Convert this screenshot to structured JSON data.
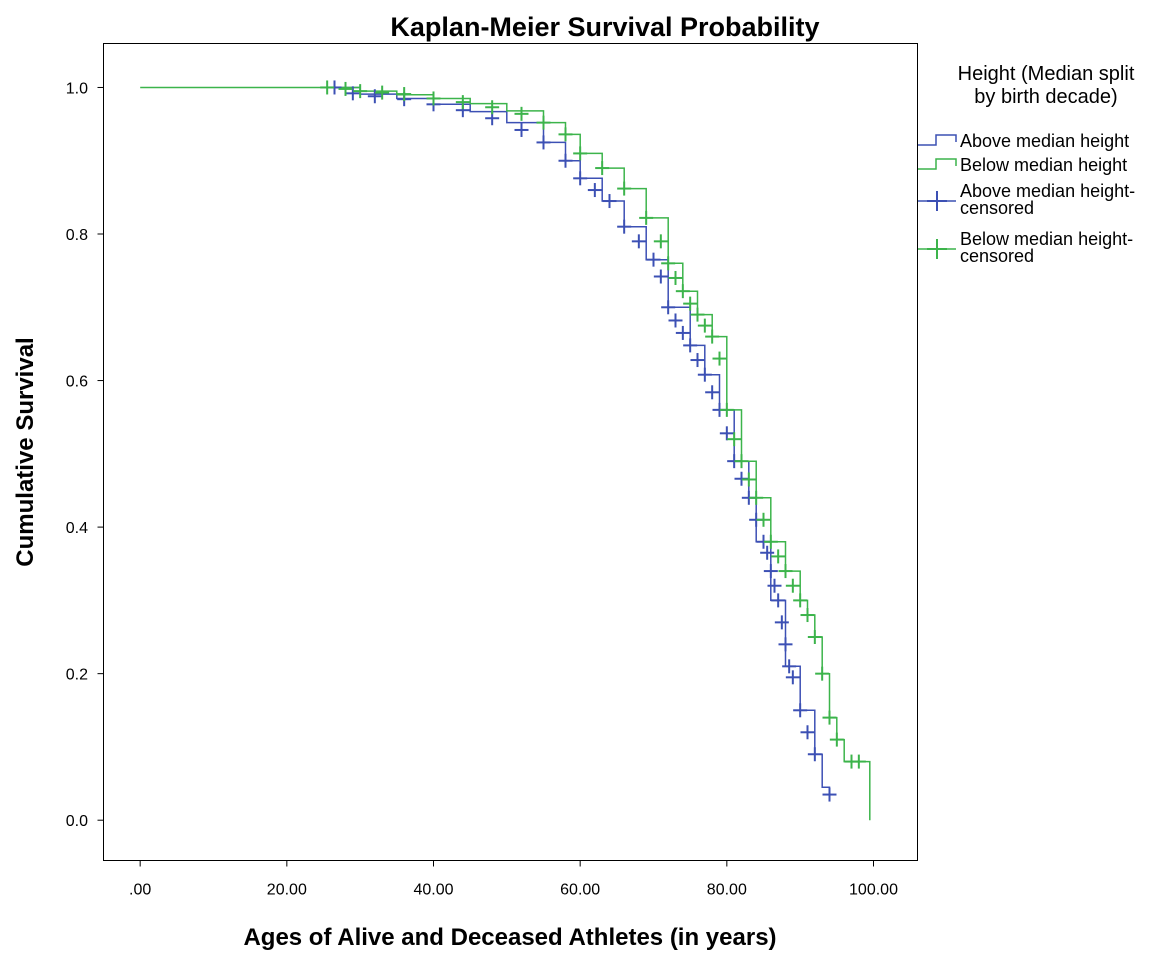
{
  "chart_data": {
    "type": "line",
    "title": "Kaplan-Meier Survival Probability",
    "xlabel": "Ages of Alive and Deceased Athletes (in years)",
    "ylabel": "Cumulative Survival",
    "xlim": [
      -5,
      106
    ],
    "ylim": [
      -0.055,
      1.06
    ],
    "xticks": [
      0,
      20,
      40,
      60,
      80,
      100
    ],
    "xtick_labels": [
      ".00",
      "20.00",
      "40.00",
      "60.00",
      "80.00",
      "100.00"
    ],
    "yticks": [
      0.0,
      0.2,
      0.4,
      0.6,
      0.8,
      1.0
    ],
    "ytick_labels": [
      "0.0",
      "0.2",
      "0.4",
      "0.6",
      "0.8",
      "1.0"
    ],
    "grid": false,
    "legend": {
      "title_lines": [
        "Height (Median split",
        "by birth decade)"
      ],
      "placement": "right",
      "entries": [
        {
          "label_lines": [
            "Above median height"
          ],
          "kind": "step",
          "series": 0
        },
        {
          "label_lines": [
            "Below median height"
          ],
          "kind": "step",
          "series": 1
        },
        {
          "label_lines": [
            "Above median height-",
            "censored"
          ],
          "kind": "censor",
          "series": 0
        },
        {
          "label_lines": [
            "Below median height-",
            "censored"
          ],
          "kind": "censor",
          "series": 1
        }
      ]
    },
    "series": [
      {
        "name": "Above median height",
        "color": "#3c50b4",
        "x": [
          26,
          30,
          35,
          40,
          45,
          50,
          55,
          58,
          60,
          63,
          66,
          69,
          72,
          75,
          77,
          79,
          81,
          83,
          84,
          86,
          88,
          90,
          92,
          93,
          94
        ],
        "y": [
          1.0,
          0.991,
          0.985,
          0.977,
          0.967,
          0.952,
          0.925,
          0.9,
          0.876,
          0.845,
          0.81,
          0.765,
          0.7,
          0.648,
          0.608,
          0.56,
          0.49,
          0.44,
          0.38,
          0.3,
          0.21,
          0.15,
          0.09,
          0.045,
          0.035
        ],
        "censored_x": [
          26.5,
          29,
          32,
          36,
          40,
          44,
          48,
          52,
          55,
          58,
          60,
          62,
          64,
          66,
          68,
          70,
          71,
          72,
          73,
          74,
          75,
          76,
          77,
          78,
          79,
          80,
          81,
          82,
          83,
          84,
          85,
          85.5,
          86,
          86.5,
          87,
          87.5,
          88,
          88.5,
          89,
          90,
          91,
          92,
          94
        ],
        "censored_y": [
          1.0,
          0.992,
          0.988,
          0.984,
          0.977,
          0.969,
          0.958,
          0.942,
          0.925,
          0.9,
          0.876,
          0.86,
          0.845,
          0.81,
          0.79,
          0.765,
          0.742,
          0.7,
          0.682,
          0.665,
          0.648,
          0.628,
          0.608,
          0.584,
          0.56,
          0.528,
          0.49,
          0.466,
          0.44,
          0.41,
          0.38,
          0.365,
          0.34,
          0.32,
          0.3,
          0.27,
          0.24,
          0.21,
          0.195,
          0.15,
          0.12,
          0.09,
          0.035
        ]
      },
      {
        "name": "Below median height",
        "color": "#3cb44b",
        "x": [
          0,
          26,
          30,
          35,
          40,
          45,
          50,
          55,
          58,
          60,
          63,
          66,
          69,
          72,
          74,
          76,
          78,
          80,
          82,
          84,
          86,
          88,
          90,
          91,
          92,
          93,
          94,
          95,
          96,
          99,
          99.5
        ],
        "y": [
          1.0,
          1.0,
          0.995,
          0.99,
          0.985,
          0.978,
          0.968,
          0.952,
          0.936,
          0.91,
          0.89,
          0.862,
          0.822,
          0.76,
          0.722,
          0.69,
          0.66,
          0.56,
          0.49,
          0.44,
          0.38,
          0.34,
          0.3,
          0.28,
          0.25,
          0.2,
          0.14,
          0.11,
          0.08,
          0.08,
          0.0
        ],
        "censored_x": [
          25.5,
          28,
          30,
          33,
          36,
          40,
          44,
          48,
          52,
          55,
          58,
          60,
          63,
          66,
          69,
          71,
          72,
          73,
          74,
          75,
          76,
          77,
          78,
          79,
          80,
          81,
          82,
          83,
          84,
          85,
          86,
          87,
          88,
          89,
          90,
          91,
          92,
          93,
          94,
          95,
          97,
          98
        ],
        "censored_y": [
          1.0,
          0.998,
          0.995,
          0.993,
          0.991,
          0.985,
          0.98,
          0.973,
          0.964,
          0.952,
          0.936,
          0.91,
          0.89,
          0.862,
          0.822,
          0.79,
          0.76,
          0.74,
          0.722,
          0.705,
          0.69,
          0.675,
          0.66,
          0.63,
          0.56,
          0.52,
          0.49,
          0.465,
          0.44,
          0.41,
          0.38,
          0.36,
          0.34,
          0.32,
          0.3,
          0.28,
          0.25,
          0.2,
          0.14,
          0.11,
          0.08,
          0.08
        ]
      }
    ]
  }
}
